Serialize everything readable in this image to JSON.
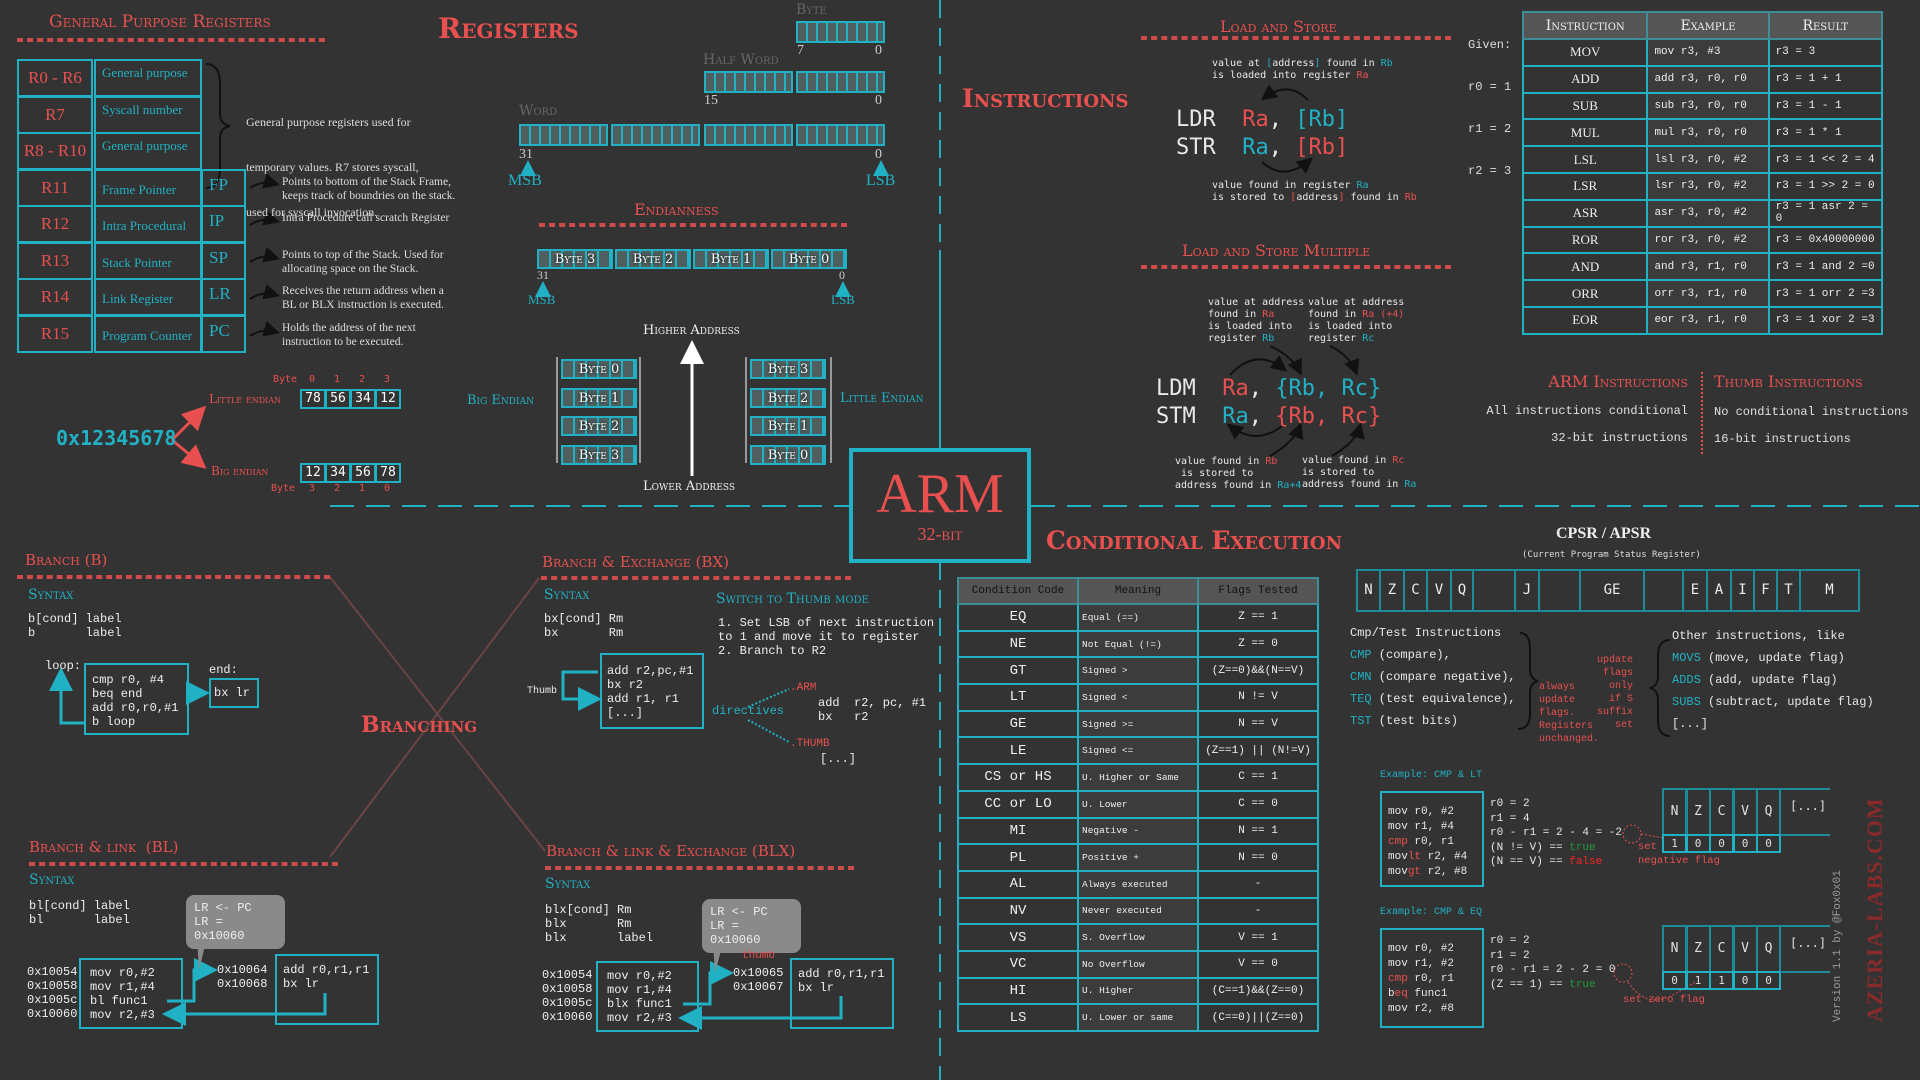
{
  "colors": {
    "background": "#333333",
    "accent_red": "#e8504f",
    "accent_teal": "#20b2c4"
  },
  "registers": {
    "title": "Registers",
    "gpr_title": "General Purpose Registers",
    "gp_desc": [
      "General purpose registers used for",
      "temporary values. R7 stores syscall,",
      "used for syscall invocation."
    ],
    "rows": [
      {
        "reg": "R0 - R6",
        "name": "General purpose"
      },
      {
        "reg": "R7",
        "name": "Syscall number"
      },
      {
        "reg": "R8 - R10",
        "name": "General purpose"
      },
      {
        "reg": "R11",
        "name": "Frame Pointer",
        "alias": "FP",
        "desc": [
          "Points to bottom of the Stack Frame,",
          "keeps track of boundries on the stack."
        ]
      },
      {
        "reg": "R12",
        "name": "Intra Procedural",
        "alias": "IP",
        "desc": [
          "Intra Procedure call scratch Register"
        ]
      },
      {
        "reg": "R13",
        "name": "Stack Pointer",
        "alias": "SP",
        "desc": [
          "Points to top of the Stack. Used for",
          "allocating space on the Stack."
        ]
      },
      {
        "reg": "R14",
        "name": "Link Register",
        "alias": "LR",
        "desc": [
          "Receives the return address when a",
          "BL or BLX instruction is executed."
        ]
      },
      {
        "reg": "R15",
        "name": "Program Counter",
        "alias": "PC",
        "desc": [
          "Holds the address of the next",
          "instruction to be executed."
        ]
      }
    ]
  },
  "sizes": {
    "byte": "Byte",
    "byte_hi": "7",
    "byte_lo": "0",
    "half": "Half Word",
    "half_hi": "15",
    "half_lo": "0",
    "word": "Word",
    "word_hi": "31",
    "word_lo": "0",
    "msb": "MSB",
    "lsb": "LSB"
  },
  "endianness": {
    "title": "Endianness",
    "bytes": [
      "Byte 3",
      "Byte 2",
      "Byte 1",
      "Byte 0"
    ],
    "hi": "31",
    "lo": "0",
    "msb": "MSB",
    "lsb": "LSB",
    "higher": "Higher Address",
    "lower": "Lower Address",
    "big_label": "Big Endian",
    "little_label": "Little Endian",
    "big_stack": [
      "Byte 0",
      "Byte 1",
      "Byte 2",
      "Byte 3"
    ],
    "little_stack": [
      "Byte 3",
      "Byte 2",
      "Byte 1",
      "Byte 0"
    ],
    "value": "0x12345678",
    "little": {
      "label": "Little endian",
      "byte_word": "Byte",
      "indices": [
        "0",
        "1",
        "2",
        "3"
      ],
      "cells": [
        "78",
        "56",
        "34",
        "12"
      ]
    },
    "big": {
      "label": "Big endian",
      "byte_word": "Byte",
      "indices": [
        "3",
        "2",
        "1",
        "0"
      ],
      "cells": [
        "12",
        "34",
        "56",
        "78"
      ]
    }
  },
  "logo": {
    "main": "ARM",
    "sub": "32-bit"
  },
  "instructions": {
    "title": "Instructions",
    "ls_title": "Load and Store",
    "ls_top": [
      [
        [
          "value at ",
          "w"
        ],
        [
          "[",
          "t"
        ],
        [
          "address",
          "w"
        ],
        [
          "]",
          "t"
        ],
        [
          " found in ",
          "w"
        ],
        [
          "Rb",
          "t"
        ]
      ],
      [
        [
          "is loaded into register ",
          "w"
        ],
        [
          "Ra",
          "r"
        ]
      ]
    ],
    "ls_code": [
      [
        [
          "LDR  ",
          "w"
        ],
        [
          "Ra",
          "r"
        ],
        [
          ", ",
          "w"
        ],
        [
          "[Rb]",
          "t"
        ]
      ],
      [
        [
          "STR  ",
          "w"
        ],
        [
          "Ra",
          "t"
        ],
        [
          ", ",
          "w"
        ],
        [
          "[Rb]",
          "r"
        ]
      ]
    ],
    "ls_bottom": [
      [
        [
          "value found in register ",
          "w"
        ],
        [
          "Ra",
          "t"
        ]
      ],
      [
        [
          "is stored to ",
          "w"
        ],
        [
          "[",
          "r"
        ],
        [
          "address",
          "w"
        ],
        [
          "]",
          "r"
        ],
        [
          " found in ",
          "w"
        ],
        [
          "Rb",
          "r"
        ]
      ]
    ],
    "lsm_title": "Load and Store Multiple",
    "lsm_top_a": [
      [
        [
          "value at address",
          "w"
        ]
      ],
      [
        [
          "found in ",
          "w"
        ],
        [
          "Ra",
          "r"
        ]
      ],
      [
        [
          "is loaded into",
          "w"
        ]
      ],
      [
        [
          "register ",
          "w"
        ],
        [
          "Rb",
          "t"
        ]
      ]
    ],
    "lsm_top_b": [
      [
        [
          "value at address",
          "w"
        ]
      ],
      [
        [
          "found in ",
          "w"
        ],
        [
          "Ra (+4)",
          "r"
        ]
      ],
      [
        [
          "is loaded into",
          "w"
        ]
      ],
      [
        [
          "register ",
          "w"
        ],
        [
          "Rc",
          "t"
        ]
      ]
    ],
    "lsm_code": [
      [
        [
          "LDM  ",
          "w"
        ],
        [
          "Ra",
          "r"
        ],
        [
          ", ",
          "w"
        ],
        [
          "{Rb, Rc}",
          "t"
        ]
      ],
      [
        [
          "STM  ",
          "w"
        ],
        [
          "Ra",
          "t"
        ],
        [
          ", ",
          "w"
        ],
        [
          "{Rb, Rc}",
          "r"
        ]
      ]
    ],
    "lsm_bot_a": [
      [
        [
          "value found in ",
          "w"
        ],
        [
          "Rb",
          "r"
        ]
      ],
      [
        [
          " is stored to",
          "w"
        ]
      ],
      [
        [
          "address found in ",
          "w"
        ],
        [
          "Ra+4",
          "t"
        ]
      ]
    ],
    "lsm_bot_b": [
      [
        [
          "value found in ",
          "w"
        ],
        [
          "Rc",
          "r"
        ]
      ],
      [
        [
          "is stored to",
          "w"
        ]
      ],
      [
        [
          "address found in ",
          "w"
        ],
        [
          "Ra",
          "t"
        ]
      ]
    ],
    "given": [
      "Given:",
      "r0 = 1",
      "r1 = 2",
      "r2 = 3"
    ],
    "table": {
      "headers": [
        "Instruction",
        "Example",
        "Result"
      ],
      "rows": [
        [
          "MOV",
          "mov r3, #3",
          "r3 = 3"
        ],
        [
          "ADD",
          "add r3, r0, r0",
          "r3 = 1 + 1"
        ],
        [
          "SUB",
          "sub r3, r0, r0",
          "r3 = 1 - 1"
        ],
        [
          "MUL",
          "mul r3, r0, r0",
          "r3 = 1 * 1"
        ],
        [
          "LSL",
          "lsl r3, r0, #2",
          "r3 = 1 << 2 = 4"
        ],
        [
          "LSR",
          "lsr r3, r0, #2",
          "r3 = 1 >> 2 = 0"
        ],
        [
          "ASR",
          "asr r3, r0, #2",
          "r3 = 1 asr 2 = 0"
        ],
        [
          "ROR",
          "ror r3, r0, #2",
          "r3 = 0x40000000"
        ],
        [
          "AND",
          "and r3, r1, r0",
          "r3 = 1 and 2 =0"
        ],
        [
          "ORR",
          "orr r3, r1, r0",
          "r3 = 1 orr 2 =3"
        ],
        [
          "EOR",
          "eor r3, r1, r0",
          "r3 = 1 xor 2 =3"
        ]
      ]
    },
    "arm": {
      "title": "ARM Instructions",
      "lines": [
        "All instructions conditional",
        "32-bit instructions"
      ]
    },
    "thumb": {
      "title": "Thumb Instructions",
      "lines": [
        "No conditional instructions",
        "16-bit instructions"
      ]
    }
  },
  "conditional": {
    "title": "Conditional Execution",
    "headers": [
      "Condition Code",
      "Meaning",
      "Flags Tested"
    ],
    "rows": [
      [
        "EQ",
        "Equal (==)",
        "Z == 1"
      ],
      [
        "NE",
        "Not Equal (!=)",
        "Z == 0"
      ],
      [
        "GT",
        "Signed >",
        "(Z==0)&&(N==V)"
      ],
      [
        "LT",
        "Signed <",
        "N != V"
      ],
      [
        "GE",
        "Signed >=",
        "N == V"
      ],
      [
        "LE",
        "Signed <=",
        "(Z==1) || (N!=V)"
      ],
      [
        "CS or HS",
        "U. Higher or Same",
        "C == 1"
      ],
      [
        "CC or LO",
        "U. Lower",
        "C == 0"
      ],
      [
        "MI",
        "Negative -",
        "N == 1"
      ],
      [
        "PL",
        "Positive +",
        "N == 0"
      ],
      [
        "AL",
        "Always executed",
        "-"
      ],
      [
        "NV",
        "Never executed",
        "-"
      ],
      [
        "VS",
        "S. Overflow",
        "V == 1"
      ],
      [
        "VC",
        "No Overflow",
        "V == 0"
      ],
      [
        "HI",
        "U. Higher",
        "(C==1)&&(Z==0)"
      ],
      [
        "LS",
        "U. Lower or same",
        "(C==0)||(Z==0)"
      ]
    ]
  },
  "cpsr": {
    "title": "CPSR / APSR",
    "subtitle": "(Current Program Status Register)",
    "flags": [
      "N",
      "Z",
      "C",
      "V",
      "Q",
      "",
      "J",
      "",
      "GE",
      "",
      "E",
      "A",
      "I",
      "F",
      "T",
      "M"
    ],
    "cmp_list": [
      [
        [
          "Cmp/Test Instructions",
          "w"
        ]
      ],
      [
        [
          "CMP",
          "t"
        ],
        [
          " (compare),",
          "w"
        ]
      ],
      [
        [
          "CMN",
          "t"
        ],
        [
          " (compare negative),",
          "w"
        ]
      ],
      [
        [
          "TEQ",
          "t"
        ],
        [
          " (test equivalence),",
          "w"
        ]
      ],
      [
        [
          "TST",
          "t"
        ],
        [
          " (test bits)",
          "w"
        ]
      ]
    ],
    "always_note": [
      "always",
      "update",
      "flags.",
      "Registers",
      "unchanged."
    ],
    "s_note": [
      "update",
      "flags",
      "only",
      "if S",
      "suffix",
      "set"
    ],
    "other_list": [
      [
        [
          "Other instructions, like",
          "w"
        ]
      ],
      [
        [
          "MOVS",
          "t"
        ],
        [
          " (move, update flag)",
          "w"
        ]
      ],
      [
        [
          "ADDS",
          "t"
        ],
        [
          " (add, update flag)",
          "w"
        ]
      ],
      [
        [
          "SUBS",
          "t"
        ],
        [
          " (subtract, update flag)",
          "w"
        ]
      ],
      [
        [
          "[...]",
          "w"
        ]
      ]
    ]
  },
  "examples": [
    {
      "title": "Example: CMP & LT",
      "code": [
        [
          [
            "mov   ",
            "w"
          ],
          [
            "r0, #2",
            "w"
          ]
        ],
        [
          [
            "mov   ",
            "w"
          ],
          [
            "r1, #4",
            "w"
          ]
        ],
        [
          [
            "cmp",
            "r"
          ],
          [
            "   r0, r1",
            "w"
          ]
        ],
        [
          [
            "mov",
            "w"
          ],
          [
            "lt",
            "r"
          ],
          [
            " r2, #4",
            "w"
          ]
        ],
        [
          [
            "mov",
            "w"
          ],
          [
            "gt",
            "r"
          ],
          [
            " r2, #8",
            "w"
          ]
        ]
      ],
      "calc": [
        [
          [
            "r0 = 2",
            "w"
          ]
        ],
        [
          [
            "r1 = 4",
            "w"
          ]
        ],
        [
          [
            "r0 - r1 = 2 - 4 = ",
            "w"
          ],
          [
            "-2",
            "w"
          ]
        ],
        [
          [
            "(N != V) == ",
            "w"
          ],
          [
            "true",
            "g"
          ]
        ],
        [
          [
            "(N == V) == ",
            "w"
          ],
          [
            "false",
            "rr"
          ]
        ]
      ],
      "note": [
        "set",
        "negative flag"
      ],
      "flags": [
        "N",
        "Z",
        "C",
        "V",
        "Q"
      ],
      "more": "[...]",
      "values": [
        "1",
        "0",
        "0",
        "0",
        "0"
      ]
    },
    {
      "title": "Example: CMP & EQ",
      "code": [
        [
          [
            "mov   ",
            "w"
          ],
          [
            "r0, #2",
            "w"
          ]
        ],
        [
          [
            "mov   ",
            "w"
          ],
          [
            "r1, #2",
            "w"
          ]
        ],
        [
          [
            "cmp",
            "r"
          ],
          [
            "   r0, r1",
            "w"
          ]
        ],
        [
          [
            "b",
            "w"
          ],
          [
            "eq",
            "r"
          ],
          [
            "   func1",
            "w"
          ]
        ],
        [
          [
            "mov   ",
            "w"
          ],
          [
            "r2, #8",
            "w"
          ]
        ]
      ],
      "calc": [
        [
          [
            "r0 = 2",
            "w"
          ]
        ],
        [
          [
            "r1 = 2",
            "w"
          ]
        ],
        [
          [
            "r0 - r1 = 2 - 2 = ",
            "w"
          ],
          [
            "0",
            "w"
          ]
        ],
        [
          [
            "(Z == 1) == ",
            "w"
          ],
          [
            "true",
            "g"
          ]
        ]
      ],
      "note": [
        "set zero flag"
      ],
      "flags": [
        "N",
        "Z",
        "C",
        "V",
        "Q"
      ],
      "more": "[...]",
      "values": [
        "0",
        "1",
        "1",
        "0",
        "0"
      ]
    }
  ],
  "branching": {
    "title": "Branching",
    "syntax": "Syntax",
    "b": {
      "title": "Branch (B)",
      "syntax": [
        "b[cond] label",
        "b       label"
      ],
      "loop_label": "loop:",
      "loop_code": [
        "cmp  r0, #4",
        "beq  end",
        "add  r0,r0,#1",
        "b    loop"
      ],
      "end_label": "end:",
      "end_code": "bx  lr"
    },
    "bx": {
      "title": "Branch & Exchange (BX)",
      "syntax": [
        "bx[cond] Rm",
        "bx       Rm"
      ],
      "thumb_label": "Thumb",
      "code": [
        "add  r2,pc,#1",
        "bx   r2",
        "add  r1, r1",
        "[...]"
      ],
      "switch_title": "Switch to Thumb mode",
      "steps": [
        "1. Set LSB of next instruction",
        "to 1 and move it to register",
        "2. Branch to R2"
      ],
      "directives": "directives",
      "arm_dir": ".ARM",
      "arm_code": [
        "add  r2, pc, #1",
        "bx   r2"
      ],
      "thumb_dir": ".THUMB",
      "thumb_code": "[...]"
    },
    "bl": {
      "title": "Branch & link  (BL)",
      "syntax": [
        "bl[cond] label",
        "bl       label"
      ],
      "bubble": [
        "LR <- PC",
        "LR = 0x10060"
      ],
      "addrs": [
        "0x10054",
        "0x10058",
        "0x1005c",
        "0x10060"
      ],
      "code": [
        "mov  r0,#2",
        "mov  r1,#4",
        "bl   func1",
        "mov  r2,#3"
      ],
      "func_addrs": [
        "0x10064",
        "0x10068"
      ],
      "func_code": [
        "add  r0,r1,r1",
        "bx   lr"
      ]
    },
    "blx": {
      "title": "Branch & link & Exchange (BLX)",
      "syntax": [
        "blx[cond] Rm",
        "blx       Rm",
        "blx       label"
      ],
      "bubble": [
        "LR <- PC",
        "LR = 0x10060"
      ],
      "addrs": [
        "0x10054",
        "0x10058",
        "0x1005c",
        "0x10060"
      ],
      "code": [
        "mov  r0,#2",
        "mov  r1,#4",
        "blx  func1",
        "mov  r2,#3"
      ],
      "thumb_label": "thumb",
      "func_addrs": [
        "0x10065",
        "0x10067"
      ],
      "func_code": [
        "add  r0,r1,r1",
        "bx   lr"
      ]
    }
  },
  "credits": {
    "version": "Version 1.1 by @Fox0x01",
    "logo_text": "AZERIA-LABS.COM"
  }
}
